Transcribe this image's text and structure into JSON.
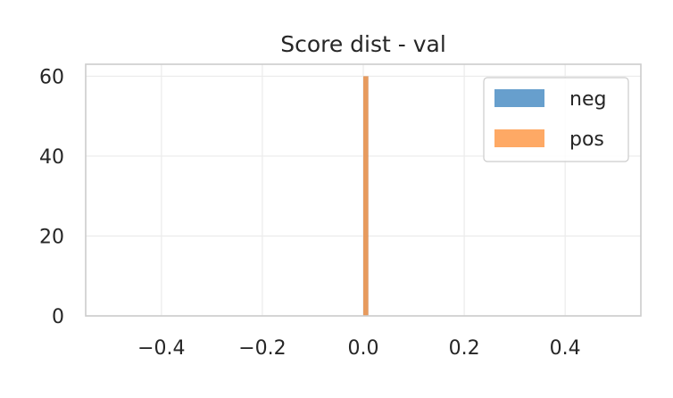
{
  "chart_data": {
    "type": "histogram",
    "title": "Score dist - val",
    "xlabel": "",
    "ylabel": "",
    "xlim": [
      -0.55,
      0.55
    ],
    "ylim": [
      0,
      63
    ],
    "x_ticks": [
      -0.4,
      -0.2,
      0.0,
      0.2,
      0.4
    ],
    "x_tick_labels": [
      "−0.4",
      "−0.2",
      "0.0",
      "0.2",
      "0.4"
    ],
    "y_ticks": [
      0,
      20,
      40,
      60
    ],
    "y_tick_labels": [
      "0",
      "20",
      "40",
      "60"
    ],
    "grid": true,
    "legend_position": "top-right",
    "series": [
      {
        "name": "neg",
        "color": "#4c8ec4",
        "bins": [
          {
            "x0": 0.0,
            "x1": 0.01,
            "count": 60
          }
        ]
      },
      {
        "name": "pos",
        "color": "#fe9a4a",
        "bins": [
          {
            "x0": 0.0,
            "x1": 0.01,
            "count": 60
          }
        ]
      }
    ]
  }
}
